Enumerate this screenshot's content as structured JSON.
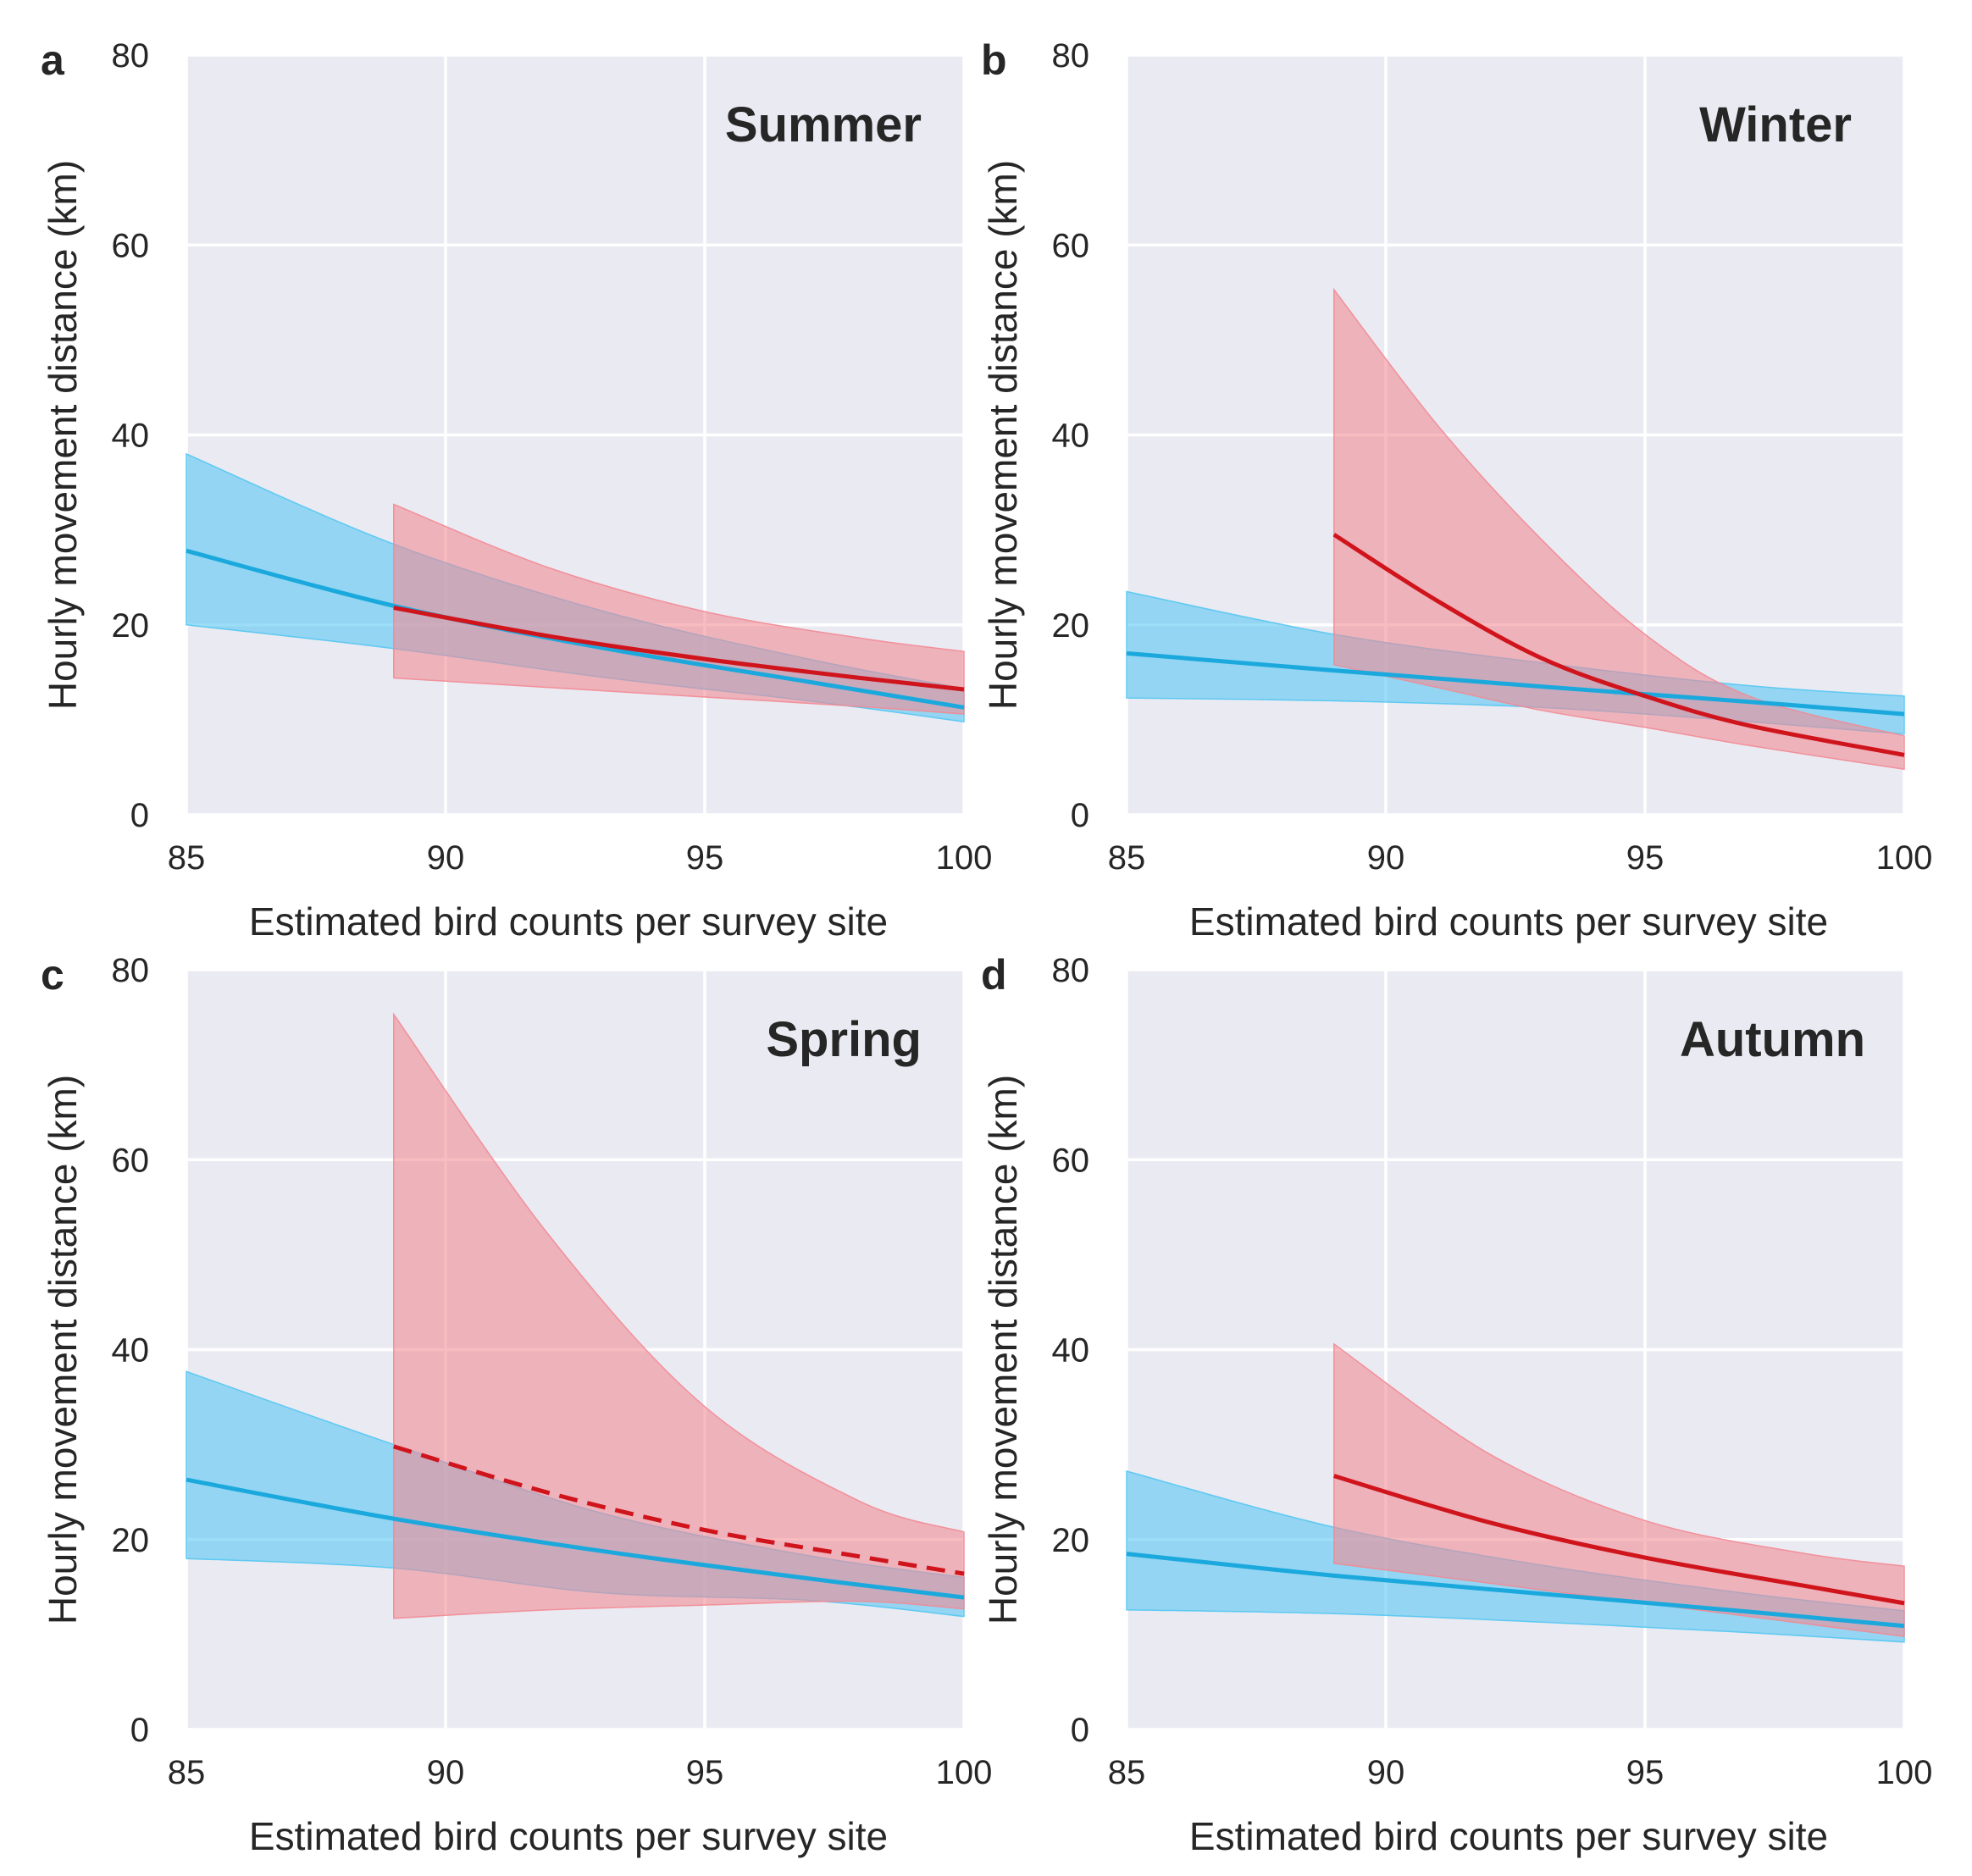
{
  "chart_data": [
    {
      "type": "line",
      "panel": "a",
      "title": "Summer",
      "xlabel": "Estimated bird counts per survey site",
      "ylabel": "Hourly movement distance (km)",
      "xlim": [
        85,
        100
      ],
      "ylim": [
        0,
        80
      ],
      "xticks": [
        "85",
        "90",
        "95",
        "100"
      ],
      "yticks": [
        "0",
        "20",
        "40",
        "60",
        "80"
      ],
      "grid": true,
      "series": [
        {
          "name": "blue",
          "color": "#1ba9dd",
          "band_color": "#54c7f2",
          "dashed": false,
          "x": [
            85,
            89,
            93,
            97,
            100
          ],
          "y": [
            27.8,
            22.0,
            17.6,
            14.0,
            11.3
          ],
          "lower": [
            20.0,
            17.5,
            14.5,
            12.0,
            9.8
          ],
          "upper": [
            38.0,
            28.5,
            21.5,
            16.4,
            13.3
          ]
        },
        {
          "name": "red",
          "color": "#d0141c",
          "band_color": "#f28a93",
          "dashed": false,
          "x": [
            89,
            92,
            95,
            98,
            100
          ],
          "y": [
            21.8,
            18.8,
            16.4,
            14.4,
            13.2
          ],
          "lower": [
            14.4,
            13.4,
            12.4,
            11.4,
            10.6
          ],
          "upper": [
            32.7,
            26.0,
            21.4,
            18.6,
            17.2
          ]
        }
      ]
    },
    {
      "type": "line",
      "panel": "b",
      "title": "Winter",
      "xlabel": "Estimated bird counts per survey site",
      "ylabel": "Hourly movement distance (km)",
      "xlim": [
        85,
        100
      ],
      "ylim": [
        0,
        80
      ],
      "xticks": [
        "85",
        "90",
        "95",
        "100"
      ],
      "yticks": [
        "0",
        "20",
        "40",
        "60",
        "80"
      ],
      "grid": true,
      "series": [
        {
          "name": "blue",
          "color": "#1ba9dd",
          "band_color": "#54c7f2",
          "dashed": false,
          "x": [
            85,
            89,
            93,
            97,
            100
          ],
          "y": [
            17.0,
            15.2,
            13.5,
            11.9,
            10.6
          ],
          "lower": [
            12.3,
            12.0,
            11.3,
            9.8,
            8.5
          ],
          "upper": [
            23.5,
            19.0,
            16.0,
            13.6,
            12.5
          ]
        },
        {
          "name": "red",
          "color": "#d0141c",
          "band_color": "#f28a93",
          "dashed": false,
          "x": [
            89,
            91,
            93,
            95,
            97,
            100
          ],
          "y": [
            29.5,
            22.5,
            16.5,
            12.5,
            9.4,
            6.3
          ],
          "lower": [
            15.8,
            13.4,
            11.0,
            9.2,
            7.3,
            4.8
          ],
          "upper": [
            55.3,
            41.0,
            29.0,
            19.0,
            12.5,
            8.3
          ]
        }
      ]
    },
    {
      "type": "line",
      "panel": "c",
      "title": "Spring",
      "xlabel": "Estimated bird counts per survey site",
      "ylabel": "Hourly movement distance (km)",
      "xlim": [
        85,
        100
      ],
      "ylim": [
        0,
        80
      ],
      "xticks": [
        "85",
        "90",
        "95",
        "100"
      ],
      "yticks": [
        "0",
        "20",
        "40",
        "60",
        "80"
      ],
      "grid": true,
      "series": [
        {
          "name": "blue",
          "color": "#1ba9dd",
          "band_color": "#54c7f2",
          "dashed": false,
          "x": [
            85,
            89,
            93,
            97,
            100
          ],
          "y": [
            26.3,
            22.2,
            18.8,
            15.9,
            13.9
          ],
          "lower": [
            18.0,
            17.0,
            14.4,
            13.6,
            11.9
          ],
          "upper": [
            37.7,
            30.0,
            22.8,
            18.3,
            16.0
          ]
        },
        {
          "name": "red",
          "color": "#d0141c",
          "band_color": "#f28a93",
          "dashed": true,
          "x": [
            89,
            92,
            95,
            98,
            100
          ],
          "y": [
            29.8,
            24.9,
            21.0,
            18.2,
            16.4
          ],
          "lower": [
            11.7,
            12.6,
            13.1,
            13.5,
            12.7
          ],
          "upper": [
            75.3,
            52.0,
            34.0,
            24.0,
            20.8
          ]
        }
      ]
    },
    {
      "type": "line",
      "panel": "d",
      "title": "Autumn",
      "xlabel": "Estimated bird counts per survey site",
      "ylabel": "Hourly movement distance (km)",
      "xlim": [
        85,
        100
      ],
      "ylim": [
        0,
        80
      ],
      "xticks": [
        "85",
        "90",
        "95",
        "100"
      ],
      "yticks": [
        "0",
        "20",
        "40",
        "60",
        "80"
      ],
      "grid": true,
      "series": [
        {
          "name": "blue",
          "color": "#1ba9dd",
          "band_color": "#54c7f2",
          "dashed": false,
          "x": [
            85,
            89,
            93,
            97,
            100
          ],
          "y": [
            18.5,
            16.2,
            14.3,
            12.4,
            10.9
          ],
          "lower": [
            12.6,
            12.2,
            11.3,
            10.2,
            9.2
          ],
          "upper": [
            27.2,
            21.3,
            17.3,
            14.3,
            12.5
          ]
        },
        {
          "name": "red",
          "color": "#d0141c",
          "band_color": "#f28a93",
          "dashed": false,
          "x": [
            89,
            92,
            95,
            98,
            100
          ],
          "y": [
            26.7,
            21.8,
            18.1,
            15.2,
            13.3
          ],
          "lower": [
            17.5,
            15.4,
            13.3,
            11.2,
            9.8
          ],
          "upper": [
            40.6,
            29.0,
            22.0,
            18.6,
            17.2
          ]
        }
      ]
    }
  ]
}
